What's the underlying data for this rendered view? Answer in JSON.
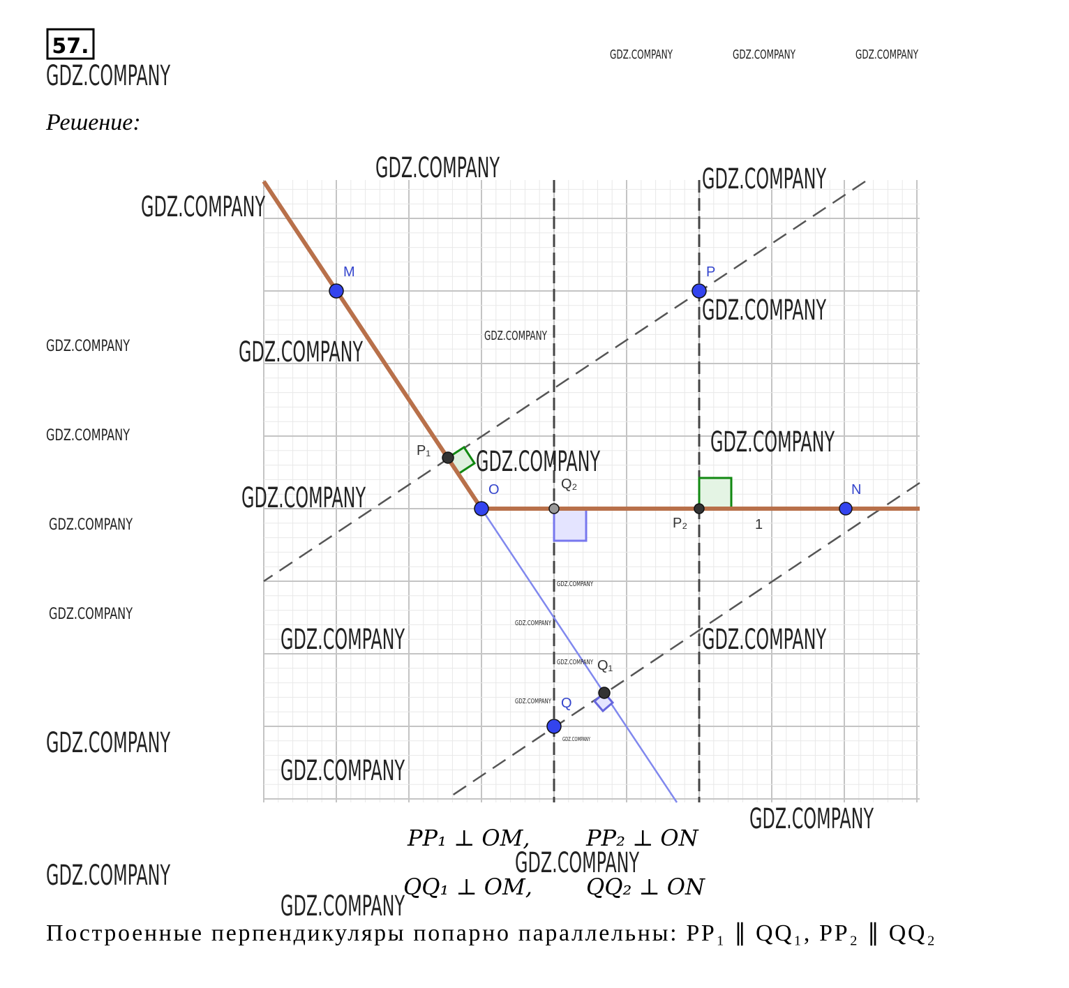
{
  "problem_number": "57.",
  "watermark": "GDZ.COMPANY",
  "heading": "Решение:",
  "diagram": {
    "points": [
      "M",
      "P",
      "O",
      "Q₂",
      "P₁",
      "P₂",
      "N",
      "Q",
      "Q₁"
    ],
    "minor_label": "1"
  },
  "formulas": [
    "PP₁ ⊥ OM,",
    "PP₂ ⊥ ON",
    "QQ₁ ⊥ OM,",
    "QQ₂ ⊥ ON"
  ],
  "conclusion": "Построенные перпендикуляры попарно параллельны: PP₁ ∥ QQ₁, PP₂ ∥ QQ₂"
}
